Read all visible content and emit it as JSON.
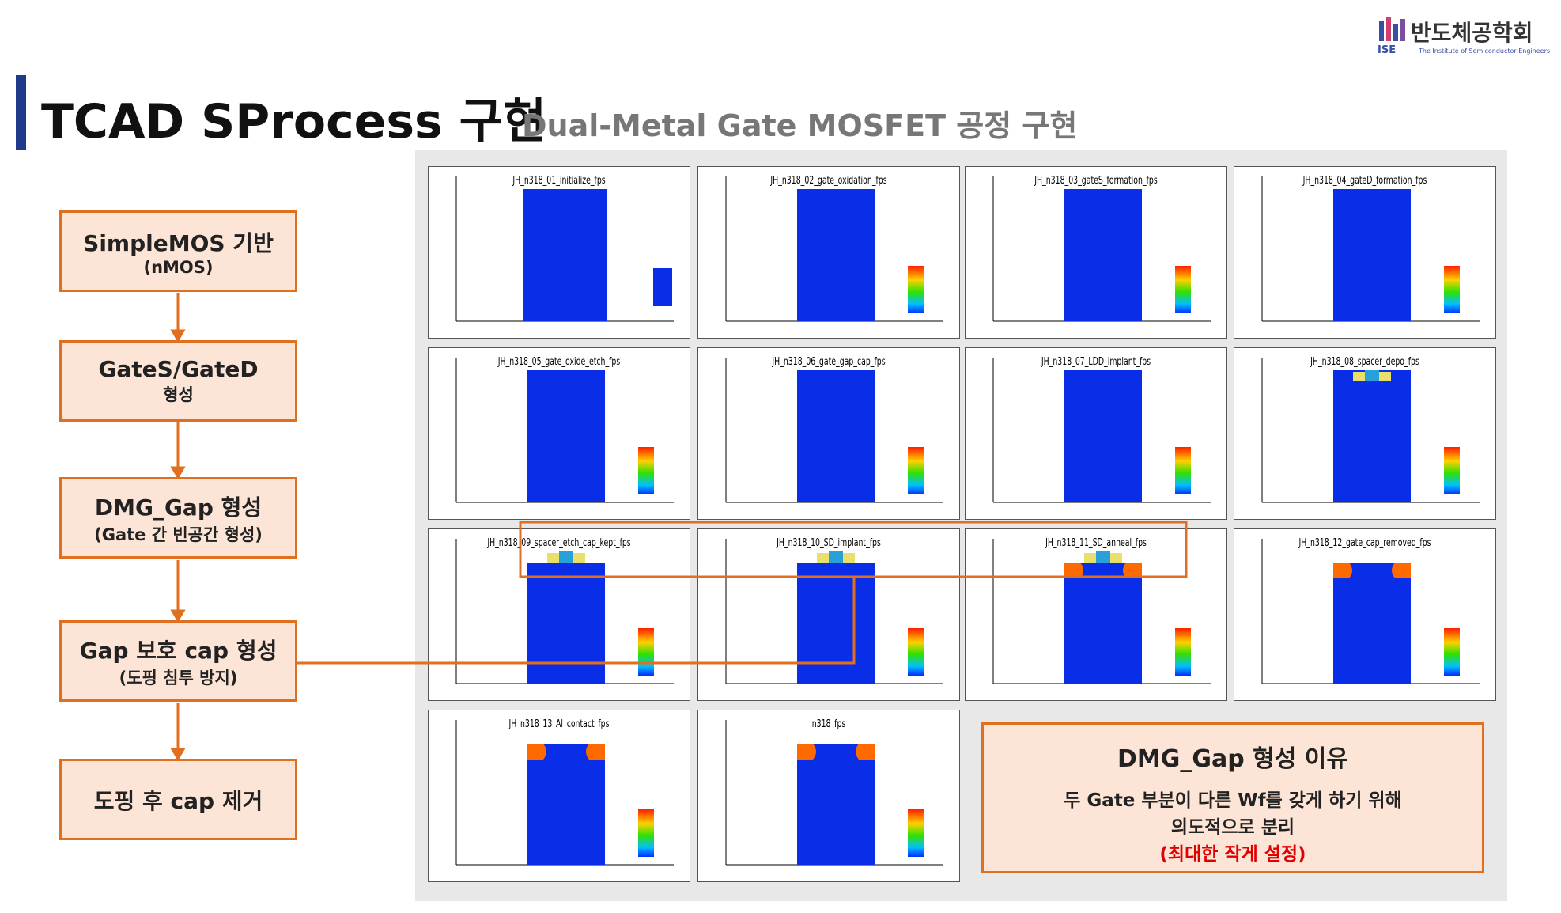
{
  "header": {
    "title": "TCAD SProcess 구현",
    "subtitle": "Dual-Metal Gate MOSFET 공정 구현",
    "logo": {
      "name": "반도체공학회",
      "abbr": "ISE",
      "english": "The Institute of Semiconductor Engineers"
    }
  },
  "flow": [
    {
      "title": "SimpleMOS 기반",
      "note": "(nMOS)"
    },
    {
      "title": "GateS/GateD",
      "note": "형성"
    },
    {
      "title": "DMG_Gap 형성",
      "note": "(Gate 간 빈공간 형성)"
    },
    {
      "title": "Gap 보호 cap 형성",
      "note": "(도핑 침투 방지)"
    },
    {
      "title": "도핑 후 cap 제거"
    }
  ],
  "panels": [
    "JH_n318_01_initialize_fps",
    "JH_n318_02_gate_oxidation_fps",
    "JH_n318_03_gateS_formation_fps",
    "JH_n318_04_gateD_formation_fps",
    "JH_n318_05_gate_oxide_etch_fps",
    "JH_n318_06_gate_gap_cap_fps",
    "JH_n318_07_LDD_implant_fps",
    "JH_n318_08_spacer_depo_fps",
    "JH_n318_09_spacer_etch_cap_kept_fps",
    "JH_n318_10_SD_implant_fps",
    "JH_n318_11_SD_anneal_fps",
    "JH_n318_12_gate_cap_removed_fps",
    "JH_n318_13_Al_contact_fps",
    "n318_fps"
  ],
  "info": {
    "title": "DMG_Gap 형성 이유",
    "lines": [
      "두 Gate 부분이 다른 Wf를 갖게 하기 위해",
      "의도적으로 분리"
    ],
    "highlight": "(최대한 작게 설정)"
  }
}
